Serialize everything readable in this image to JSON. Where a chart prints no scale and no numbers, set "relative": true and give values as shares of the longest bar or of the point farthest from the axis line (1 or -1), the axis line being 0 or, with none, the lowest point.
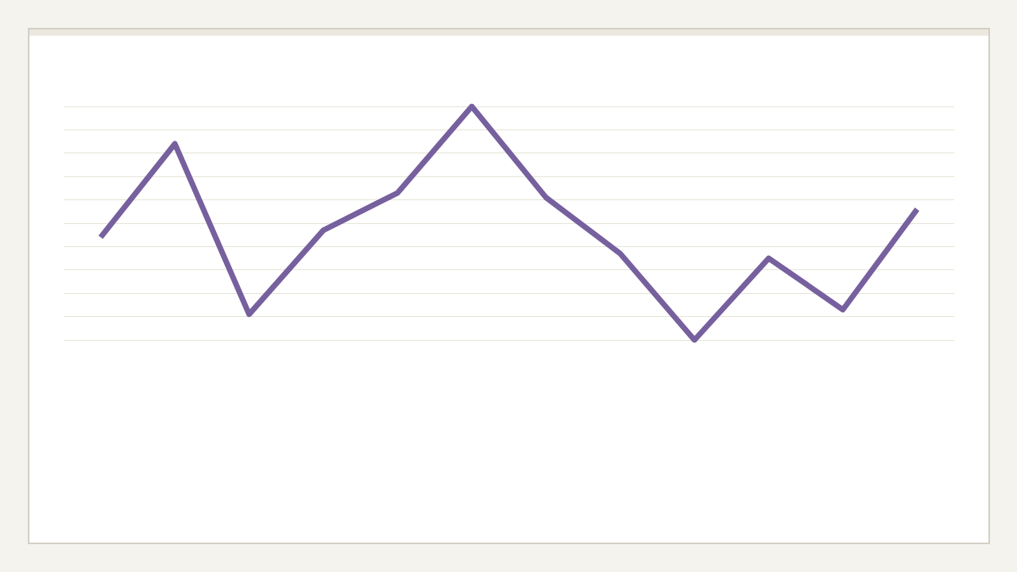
{
  "chart_data": {
    "type": "line",
    "relative": true,
    "grid": "y",
    "marker": "none",
    "line_style": "solid",
    "categories": [
      null,
      null,
      null,
      null,
      null,
      null,
      null,
      null,
      null,
      null,
      null,
      null
    ],
    "series": [
      {
        "color": "#76609e",
        "values": [
          0.44,
          0.84,
          0.11,
          0.47,
          0.63,
          1,
          0.61,
          0.37,
          0,
          0.35,
          0.13,
          0.56
        ]
      }
    ]
  }
}
